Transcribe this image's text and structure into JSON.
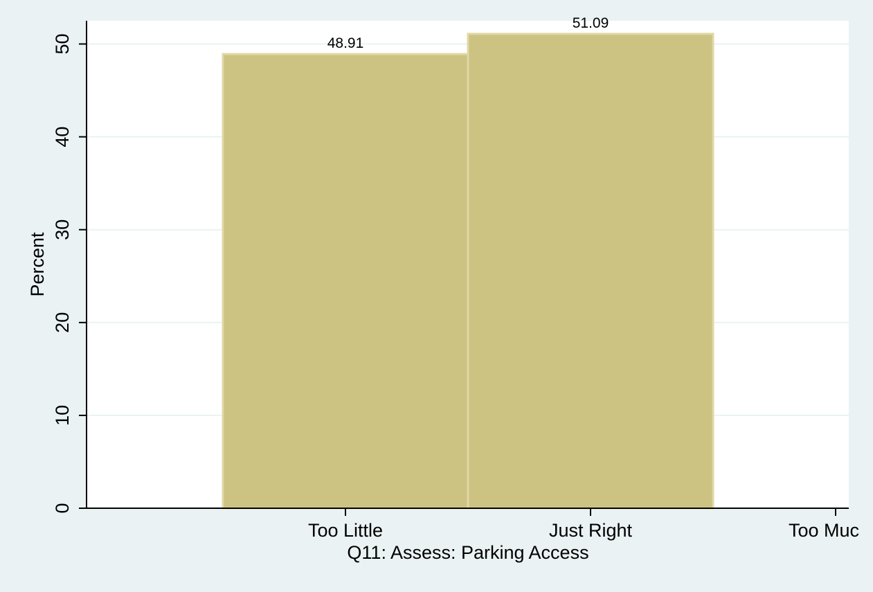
{
  "chart_data": {
    "type": "bar",
    "categories": [
      "Too Little",
      "Just Right"
    ],
    "x_tick_labels": [
      "Too Little",
      "Just Right",
      "Too Muc"
    ],
    "values": [
      48.91,
      51.09
    ],
    "data_labels": [
      "48.91",
      "51.09"
    ],
    "title": "",
    "xlabel": "Q11: Assess: Parking Access",
    "ylabel": "Percent",
    "ylim": [
      0,
      52.5
    ],
    "y_ticks": [
      0,
      10,
      20,
      30,
      40,
      50
    ],
    "grid": true,
    "legend": "none",
    "colors": {
      "bar_fill": "#ccc282",
      "bar_edge": "#e0d8a6",
      "outer_background": "#eaf2f3",
      "plot_background": "#ffffff",
      "gridline": "#eaf2f3",
      "axis": "#000000"
    }
  }
}
